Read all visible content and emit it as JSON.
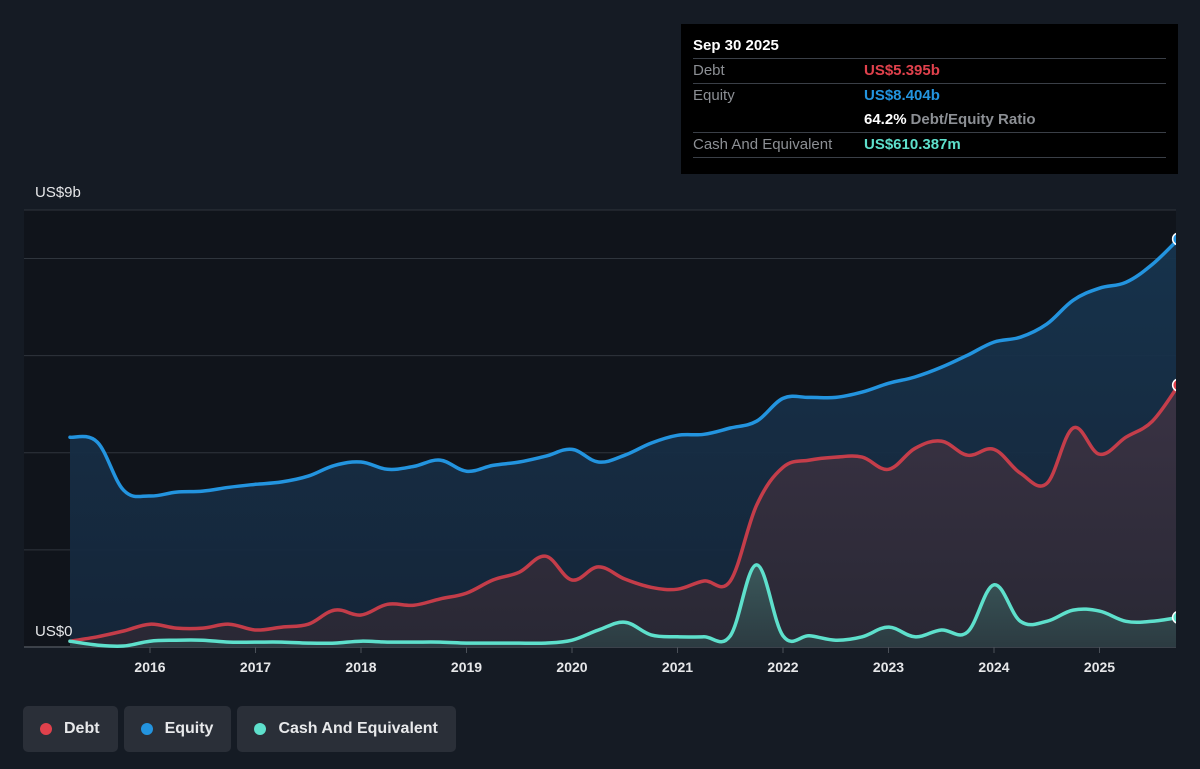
{
  "tooltip": {
    "date": "Sep 30 2025",
    "rows": {
      "debt": {
        "label": "Debt",
        "value": "US$5.395b"
      },
      "equity": {
        "label": "Equity",
        "value": "US$8.404b"
      },
      "ratio": {
        "percent": "64.2%",
        "label": "Debt/Equity Ratio"
      },
      "cash": {
        "label": "Cash And Equivalent",
        "value": "US$610.387m"
      }
    }
  },
  "legend": [
    {
      "key": "debt",
      "label": "Debt"
    },
    {
      "key": "equity",
      "label": "Equity"
    },
    {
      "key": "cash",
      "label": "Cash And Equivalent"
    }
  ],
  "colors": {
    "debt": "#e0414c",
    "equity": "#2394df",
    "cash": "#5ee0cc",
    "background": "#151b24",
    "tooltip_bg": "#000000"
  },
  "chart_data": {
    "type": "area",
    "title": "",
    "xlabel": "",
    "ylabel": "",
    "y_top_label": "US$9b",
    "y_bottom_label": "US$0",
    "ylim": [
      0,
      9
    ],
    "y_unit": "US$ billions",
    "xlim": [
      2015.24,
      2025.75
    ],
    "x_ticks": [
      2016,
      2017,
      2018,
      2019,
      2020,
      2021,
      2022,
      2023,
      2024,
      2025
    ],
    "x_tick_labels": [
      "2016",
      "2017",
      "2018",
      "2019",
      "2020",
      "2021",
      "2022",
      "2023",
      "2024",
      "2025"
    ],
    "y_gridlines": [
      0,
      2,
      4,
      6,
      8,
      9
    ],
    "grid": true,
    "legend_position": "bottom-left",
    "x": [
      2015.25,
      2015.5,
      2015.75,
      2016.0,
      2016.25,
      2016.5,
      2016.75,
      2017.0,
      2017.25,
      2017.5,
      2017.75,
      2018.0,
      2018.25,
      2018.5,
      2018.75,
      2019.0,
      2019.25,
      2019.5,
      2019.75,
      2020.0,
      2020.25,
      2020.5,
      2020.75,
      2021.0,
      2021.25,
      2021.5,
      2021.75,
      2022.0,
      2022.25,
      2022.5,
      2022.75,
      2023.0,
      2023.25,
      2023.5,
      2023.75,
      2024.0,
      2024.25,
      2024.5,
      2024.75,
      2025.0,
      2025.25,
      2025.5,
      2025.75
    ],
    "series": [
      {
        "name": "Equity",
        "key": "equity",
        "values": [
          4.32,
          4.22,
          3.23,
          3.11,
          3.19,
          3.21,
          3.29,
          3.35,
          3.4,
          3.52,
          3.74,
          3.81,
          3.66,
          3.72,
          3.85,
          3.62,
          3.74,
          3.81,
          3.93,
          4.07,
          3.81,
          3.95,
          4.2,
          4.36,
          4.38,
          4.51,
          4.65,
          5.12,
          5.14,
          5.14,
          5.25,
          5.43,
          5.56,
          5.76,
          6.01,
          6.28,
          6.38,
          6.65,
          7.14,
          7.39,
          7.51,
          7.88,
          8.404
        ]
      },
      {
        "name": "Debt",
        "key": "debt",
        "values": [
          0.12,
          0.21,
          0.33,
          0.47,
          0.39,
          0.39,
          0.47,
          0.35,
          0.41,
          0.47,
          0.76,
          0.66,
          0.88,
          0.86,
          0.99,
          1.11,
          1.38,
          1.54,
          1.87,
          1.38,
          1.65,
          1.4,
          1.23,
          1.19,
          1.36,
          1.36,
          2.92,
          3.7,
          3.85,
          3.91,
          3.91,
          3.66,
          4.09,
          4.24,
          3.95,
          4.07,
          3.58,
          3.37,
          4.51,
          3.97,
          4.32,
          4.65,
          5.395
        ]
      },
      {
        "name": "Cash And Equivalent",
        "key": "cash",
        "values": [
          0.12,
          0.04,
          0.02,
          0.12,
          0.14,
          0.14,
          0.1,
          0.1,
          0.1,
          0.08,
          0.08,
          0.12,
          0.1,
          0.1,
          0.1,
          0.08,
          0.08,
          0.08,
          0.08,
          0.14,
          0.35,
          0.51,
          0.25,
          0.21,
          0.21,
          0.23,
          1.69,
          0.23,
          0.23,
          0.14,
          0.21,
          0.41,
          0.21,
          0.35,
          0.31,
          1.28,
          0.53,
          0.53,
          0.76,
          0.74,
          0.53,
          0.53,
          0.61
        ]
      }
    ]
  }
}
